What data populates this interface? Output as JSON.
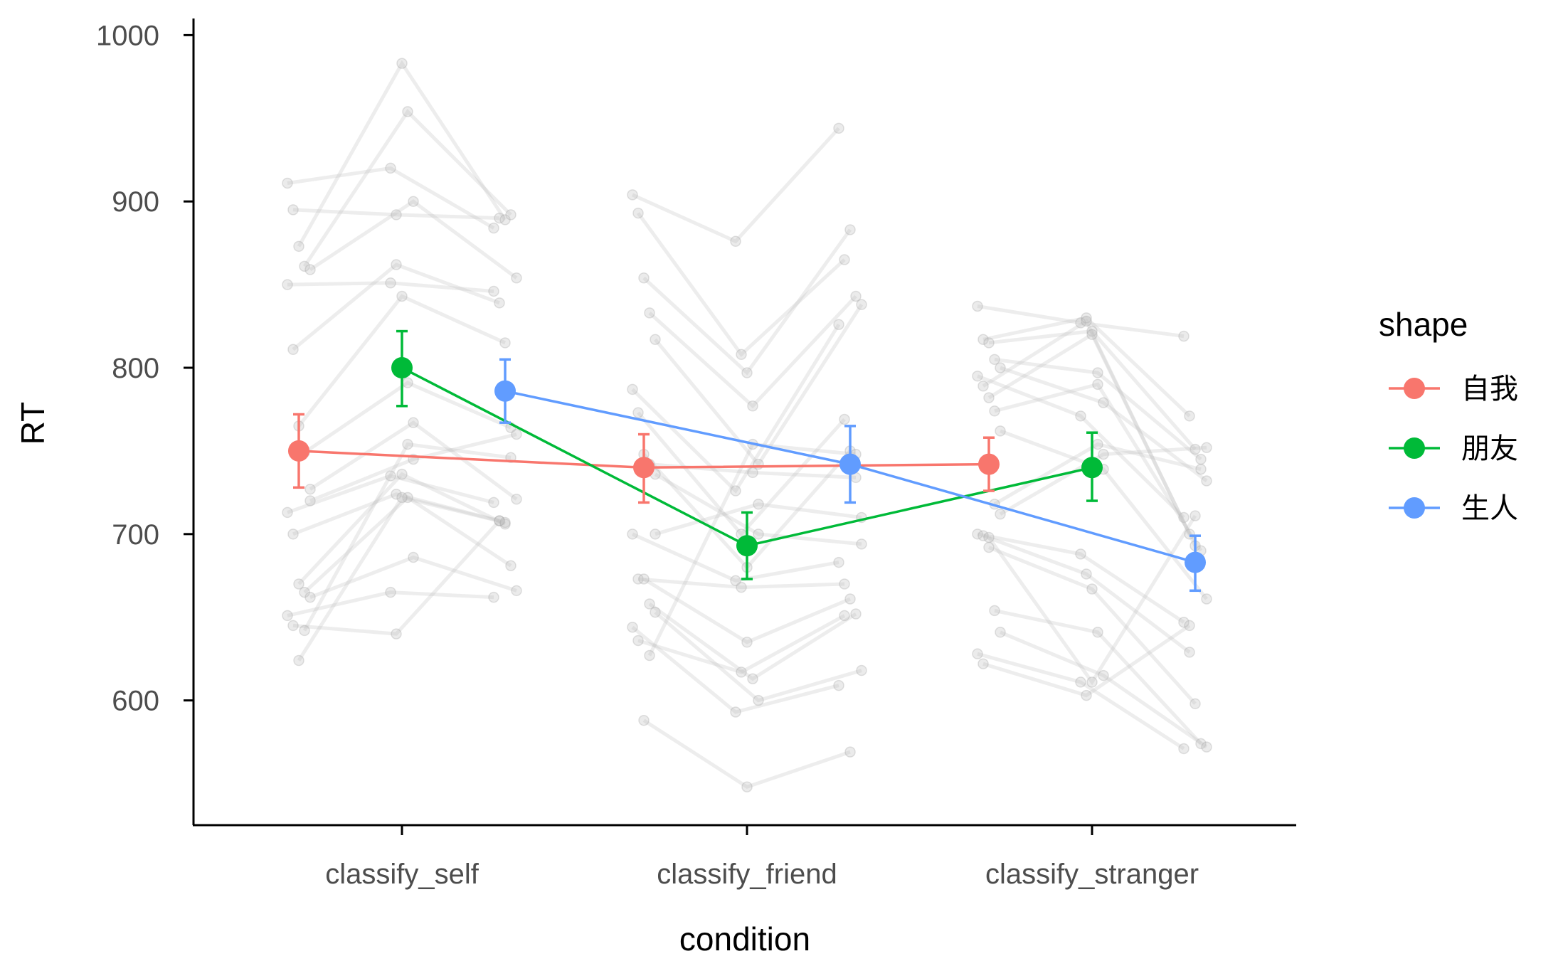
{
  "chart_data": {
    "type": "line",
    "xlabel": "condition",
    "ylabel": "RT",
    "categories": [
      "classify_self",
      "classify_friend",
      "classify_stranger"
    ],
    "ylim": [
      525,
      1010
    ],
    "yticks": [
      600,
      700,
      800,
      900,
      1000
    ],
    "grid": false,
    "legend": {
      "title": "shape",
      "position": "right",
      "entries": [
        {
          "label": "自我",
          "color": "#F8766D"
        },
        {
          "label": "朋友",
          "color": "#00BA38"
        },
        {
          "label": "生人",
          "color": "#619CFF"
        }
      ]
    },
    "series": [
      {
        "name": "自我",
        "color": "#F8766D",
        "values": [
          750,
          740,
          742
        ],
        "ci_low": [
          728,
          719,
          726
        ],
        "ci_high": [
          772,
          760,
          758
        ]
      },
      {
        "name": "朋友",
        "color": "#00BA38",
        "values": [
          800,
          693,
          740
        ],
        "ci_low": [
          777,
          673,
          720
        ],
        "ci_high": [
          822,
          713,
          761
        ]
      },
      {
        "name": "生人",
        "color": "#619CFF",
        "values": [
          786,
          742,
          683
        ],
        "ci_low": [
          767,
          719,
          666
        ],
        "ci_high": [
          805,
          765,
          699
        ]
      }
    ],
    "individual_data": {
      "color": "#bdbdbd",
      "subjects": [
        [
          [
            911,
            920,
            884
          ],
          [
            904,
            876,
            944
          ],
          [
            837,
            827,
            819
          ]
        ],
        [
          [
            895,
            892,
            890
          ],
          [
            893,
            808,
            865
          ],
          [
            817,
            830,
            771
          ]
        ],
        [
          [
            873,
            983,
            889
          ],
          [
            854,
            797,
            883
          ],
          [
            815,
            822,
            751
          ]
        ],
        [
          [
            861,
            954,
            892
          ],
          [
            833,
            777,
            843
          ],
          [
            805,
            797,
            745
          ]
        ],
        [
          [
            859,
            900,
            854
          ],
          [
            817,
            742,
            838
          ],
          [
            800,
            779,
            732
          ]
        ],
        [
          [
            850,
            851,
            846
          ],
          [
            787,
            726,
            826
          ],
          [
            795,
            771,
            710
          ]
        ],
        [
          [
            811,
            862,
            839
          ],
          [
            773,
            700,
            769
          ],
          [
            789,
            828,
            700
          ]
        ],
        [
          [
            765,
            843,
            815
          ],
          [
            748,
            680,
            750
          ],
          [
            782,
            820,
            693
          ]
        ],
        [
          [
            749,
            791,
            764
          ],
          [
            742,
            737,
            734
          ],
          [
            774,
            790,
            690
          ]
        ],
        [
          [
            727,
            767,
            721
          ],
          [
            736,
            700,
            694
          ],
          [
            762,
            739,
            661
          ]
        ],
        [
          [
            713,
            735,
            719
          ],
          [
            700,
            672,
            683
          ],
          [
            700,
            688,
            647
          ]
        ],
        [
          [
            700,
            724,
            708
          ],
          [
            673,
            668,
            670
          ],
          [
            699,
            676,
            629
          ]
        ],
        [
          [
            670,
            736,
            706
          ],
          [
            673,
            635,
            661
          ],
          [
            692,
            667,
            598
          ]
        ],
        [
          [
            665,
            722,
            681
          ],
          [
            658,
            613,
            652
          ],
          [
            654,
            641,
            574
          ]
        ],
        [
          [
            662,
            686,
            666
          ],
          [
            653,
            600,
            618
          ],
          [
            641,
            615,
            572
          ]
        ],
        [
          [
            651,
            665,
            662
          ],
          [
            644,
            593,
            609
          ],
          [
            628,
            611,
            571
          ]
        ],
        [
          [
            645,
            640,
            708
          ],
          [
            636,
            617,
            651
          ],
          [
            622,
            603,
            645
          ]
        ],
        [
          [
            624,
            722,
            707
          ],
          [
            588,
            548,
            569
          ],
          [
            698,
            611,
            711
          ]
        ],
        [
          [
            642,
            754,
            746
          ],
          [
            627,
            754,
            748
          ],
          [
            718,
            754,
            739
          ]
        ],
        [
          [
            720,
            745,
            760
          ],
          [
            700,
            718,
            710
          ],
          [
            712,
            748,
            752
          ]
        ]
      ]
    }
  }
}
